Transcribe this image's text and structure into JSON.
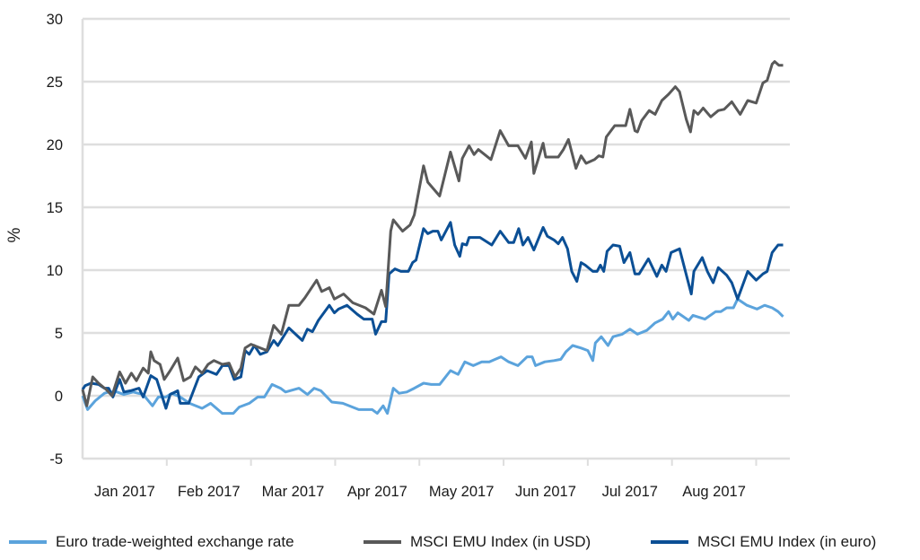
{
  "chart_data": {
    "type": "line",
    "title": "",
    "xlabel": "",
    "ylabel": "%",
    "ylim": [
      -5,
      30
    ],
    "yticks": [
      30,
      25,
      20,
      15,
      10,
      5,
      0,
      -5
    ],
    "xlim": [
      0,
      8.4
    ],
    "x_unit": "months since 1 Jan 2017",
    "xtick_labels": [
      "Jan 2017",
      "Feb 2017",
      "Mar 2017",
      "Apr 2017",
      "May 2017",
      "Jun 2017",
      "Jul 2017",
      "Aug 2017"
    ],
    "grid": "horizontal",
    "legend_position": "bottom",
    "series": [
      {
        "name": "Euro trade-weighted exchange rate",
        "color": "#5ba3dc",
        "x": [
          0.0,
          0.06,
          0.15,
          0.26,
          0.31,
          0.41,
          0.49,
          0.6,
          0.72,
          0.83,
          0.9,
          0.99,
          1.06,
          1.16,
          1.27,
          1.42,
          1.52,
          1.66,
          1.79,
          1.86,
          1.98,
          2.08,
          2.16,
          2.25,
          2.35,
          2.41,
          2.57,
          2.67,
          2.75,
          2.83,
          2.96,
          3.09,
          3.28,
          3.44,
          3.5,
          3.57,
          3.62,
          3.69,
          3.76,
          3.85,
          3.94,
          4.05,
          4.14,
          4.24,
          4.37,
          4.46,
          4.54,
          4.64,
          4.74,
          4.83,
          4.9,
          4.97,
          5.06,
          5.17,
          5.28,
          5.34,
          5.38,
          5.49,
          5.6,
          5.68,
          5.74,
          5.82,
          5.92,
          6.0,
          6.06,
          6.09,
          6.16,
          6.24,
          6.3,
          6.41,
          6.5,
          6.59,
          6.7,
          6.8,
          6.89,
          6.96,
          7.01,
          7.07,
          7.2,
          7.25,
          7.39,
          7.52,
          7.58,
          7.65,
          7.73,
          7.78,
          7.89,
          8.01,
          8.1,
          8.19,
          8.26,
          8.32
        ],
        "y": [
          0.0,
          -1.1,
          -0.4,
          0.2,
          0.3,
          0.3,
          0.1,
          0.3,
          0.1,
          -0.8,
          -0.1,
          -0.1,
          0.2,
          -0.1,
          -0.6,
          -1.0,
          -0.6,
          -1.4,
          -1.4,
          -0.9,
          -0.6,
          -0.1,
          -0.1,
          0.9,
          0.6,
          0.3,
          0.6,
          0.1,
          0.6,
          0.4,
          -0.5,
          -0.6,
          -1.1,
          -1.1,
          -1.4,
          -0.8,
          -1.4,
          0.6,
          0.2,
          0.3,
          0.6,
          1.0,
          0.9,
          0.9,
          2.0,
          1.7,
          2.7,
          2.4,
          2.7,
          2.7,
          2.9,
          3.1,
          2.7,
          2.4,
          3.1,
          3.1,
          2.4,
          2.7,
          2.8,
          2.9,
          3.5,
          4.0,
          3.8,
          3.6,
          2.8,
          4.2,
          4.7,
          4.0,
          4.7,
          4.9,
          5.3,
          4.9,
          5.2,
          5.8,
          6.1,
          6.7,
          6.1,
          6.6,
          6.0,
          6.4,
          6.1,
          6.7,
          6.7,
          7.0,
          7.0,
          7.7,
          7.2,
          6.9,
          7.2,
          7.0,
          6.7,
          6.3
        ]
      },
      {
        "name": "MSCI EMU Index (in USD)",
        "color": "#595959",
        "x": [
          0.0,
          0.05,
          0.12,
          0.19,
          0.28,
          0.35,
          0.44,
          0.51,
          0.58,
          0.64,
          0.72,
          0.78,
          0.81,
          0.85,
          0.92,
          0.97,
          1.04,
          1.13,
          1.2,
          1.28,
          1.34,
          1.42,
          1.49,
          1.56,
          1.66,
          1.74,
          1.81,
          1.88,
          1.93,
          2.0,
          2.19,
          2.27,
          2.36,
          2.45,
          2.57,
          2.64,
          2.78,
          2.84,
          2.93,
          2.99,
          3.1,
          3.21,
          3.36,
          3.46,
          3.55,
          3.6,
          3.66,
          3.69,
          3.8,
          3.89,
          3.94,
          4.05,
          4.1,
          4.24,
          4.37,
          4.47,
          4.51,
          4.59,
          4.65,
          4.7,
          4.85,
          4.96,
          5.06,
          5.17,
          5.26,
          5.33,
          5.36,
          5.47,
          5.5,
          5.65,
          5.71,
          5.77,
          5.86,
          5.92,
          5.98,
          6.08,
          6.13,
          6.18,
          6.22,
          6.32,
          6.45,
          6.5,
          6.56,
          6.59,
          6.64,
          6.73,
          6.8,
          6.88,
          6.96,
          7.04,
          7.09,
          7.17,
          7.22,
          7.26,
          7.31,
          7.37,
          7.46,
          7.55,
          7.62,
          7.71,
          7.81,
          7.9,
          8.0,
          8.08,
          8.13,
          8.19,
          8.22,
          8.27,
          8.32
        ],
        "y": [
          0.5,
          -0.8,
          1.5,
          1.0,
          0.5,
          0.0,
          1.9,
          1.0,
          1.8,
          1.2,
          2.2,
          1.8,
          3.5,
          2.8,
          2.5,
          1.3,
          2.0,
          3.0,
          1.2,
          1.5,
          2.3,
          1.8,
          2.5,
          2.8,
          2.5,
          2.6,
          1.5,
          2.2,
          3.8,
          4.1,
          3.6,
          5.6,
          4.9,
          7.2,
          7.2,
          7.8,
          9.2,
          8.3,
          8.6,
          7.7,
          8.1,
          7.4,
          7.0,
          6.5,
          8.4,
          7.1,
          13.1,
          14.0,
          13.1,
          13.6,
          14.4,
          18.3,
          17.0,
          15.9,
          19.4,
          17.1,
          18.9,
          19.9,
          19.2,
          19.6,
          18.8,
          21.1,
          19.9,
          19.9,
          18.9,
          20.2,
          17.7,
          20.1,
          19.0,
          19.0,
          19.6,
          20.4,
          18.1,
          19.1,
          18.5,
          18.8,
          19.1,
          19.0,
          20.6,
          21.5,
          21.5,
          22.8,
          21.1,
          21.0,
          21.9,
          22.7,
          22.4,
          23.5,
          24.0,
          24.6,
          24.2,
          22.0,
          21.0,
          22.7,
          22.4,
          22.9,
          22.2,
          22.7,
          22.8,
          23.4,
          22.4,
          23.5,
          23.3,
          24.9,
          25.1,
          26.4,
          26.6,
          26.3,
          26.3
        ]
      },
      {
        "name": "MSCI EMU Index (in euro)",
        "color": "#0b4f95",
        "x": [
          0.0,
          0.03,
          0.1,
          0.19,
          0.26,
          0.31,
          0.36,
          0.44,
          0.49,
          0.57,
          0.67,
          0.72,
          0.81,
          0.88,
          0.99,
          1.04,
          1.13,
          1.16,
          1.26,
          1.38,
          1.48,
          1.59,
          1.66,
          1.74,
          1.8,
          1.88,
          1.93,
          1.98,
          2.04,
          2.11,
          2.19,
          2.27,
          2.32,
          2.45,
          2.61,
          2.67,
          2.73,
          2.8,
          2.93,
          2.99,
          3.04,
          3.14,
          3.26,
          3.34,
          3.44,
          3.48,
          3.55,
          3.6,
          3.64,
          3.71,
          3.78,
          3.87,
          3.92,
          3.96,
          4.05,
          4.1,
          4.16,
          4.22,
          4.26,
          4.37,
          4.42,
          4.48,
          4.51,
          4.56,
          4.59,
          4.72,
          4.86,
          4.96,
          5.06,
          5.12,
          5.18,
          5.23,
          5.29,
          5.36,
          5.47,
          5.52,
          5.6,
          5.65,
          5.7,
          5.76,
          5.81,
          5.87,
          5.92,
          5.97,
          6.06,
          6.11,
          6.15,
          6.19,
          6.23,
          6.3,
          6.38,
          6.43,
          6.5,
          6.56,
          6.61,
          6.72,
          6.82,
          6.88,
          6.93,
          6.99,
          7.09,
          7.23,
          7.26,
          7.36,
          7.42,
          7.49,
          7.55,
          7.65,
          7.71,
          7.78,
          7.9,
          8.0,
          8.08,
          8.13,
          8.19,
          8.26,
          8.32
        ],
        "y": [
          0.5,
          0.8,
          1.0,
          0.9,
          0.6,
          0.6,
          -0.1,
          1.3,
          0.3,
          0.4,
          0.6,
          -0.1,
          1.6,
          1.3,
          -1.0,
          0.1,
          0.4,
          -0.6,
          -0.6,
          1.5,
          2.0,
          1.7,
          2.4,
          2.4,
          1.3,
          1.5,
          3.6,
          3.3,
          4.0,
          3.3,
          3.5,
          4.4,
          4.0,
          5.4,
          4.4,
          5.3,
          5.1,
          6.0,
          7.2,
          6.6,
          6.9,
          7.2,
          6.5,
          6.1,
          6.1,
          4.9,
          5.9,
          5.9,
          9.7,
          10.1,
          9.9,
          9.9,
          10.6,
          10.8,
          13.3,
          12.9,
          13.1,
          13.1,
          12.4,
          13.8,
          12.0,
          11.1,
          12.1,
          12.0,
          12.6,
          12.6,
          12.0,
          13.1,
          12.2,
          12.2,
          13.3,
          12.0,
          12.6,
          11.6,
          13.4,
          12.7,
          12.4,
          12.1,
          12.6,
          11.7,
          9.9,
          9.1,
          10.6,
          10.4,
          9.9,
          9.9,
          10.4,
          9.9,
          11.5,
          12.0,
          11.9,
          10.6,
          11.4,
          9.7,
          9.7,
          10.9,
          9.5,
          10.4,
          9.9,
          11.4,
          11.7,
          8.1,
          9.9,
          11.0,
          9.9,
          9.0,
          10.2,
          9.6,
          9.0,
          7.7,
          9.9,
          9.2,
          9.7,
          9.9,
          11.4,
          12.0,
          12.0
        ]
      }
    ]
  }
}
